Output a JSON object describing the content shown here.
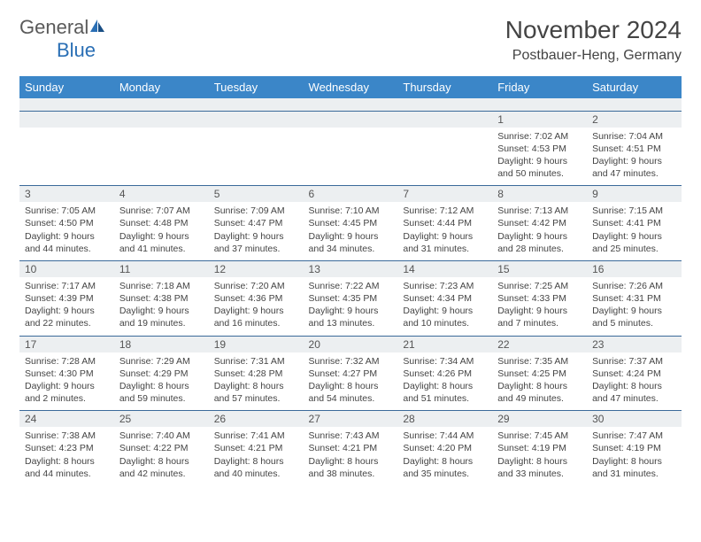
{
  "logo": {
    "text1": "General",
    "text2": "Blue"
  },
  "title": "November 2024",
  "location": "Postbauer-Heng, Germany",
  "colors": {
    "header_bg": "#3b86c8",
    "header_text": "#ffffff",
    "date_bar_bg": "#eceff1",
    "row_border": "#3b6a9a",
    "text": "#444444",
    "logo_gray": "#5a5a5a",
    "logo_blue": "#2a6fb5"
  },
  "weekdays": [
    "Sunday",
    "Monday",
    "Tuesday",
    "Wednesday",
    "Thursday",
    "Friday",
    "Saturday"
  ],
  "weeks": [
    [
      null,
      null,
      null,
      null,
      null,
      {
        "date": "1",
        "sunrise": "Sunrise: 7:02 AM",
        "sunset": "Sunset: 4:53 PM",
        "daylight1": "Daylight: 9 hours",
        "daylight2": "and 50 minutes."
      },
      {
        "date": "2",
        "sunrise": "Sunrise: 7:04 AM",
        "sunset": "Sunset: 4:51 PM",
        "daylight1": "Daylight: 9 hours",
        "daylight2": "and 47 minutes."
      }
    ],
    [
      {
        "date": "3",
        "sunrise": "Sunrise: 7:05 AM",
        "sunset": "Sunset: 4:50 PM",
        "daylight1": "Daylight: 9 hours",
        "daylight2": "and 44 minutes."
      },
      {
        "date": "4",
        "sunrise": "Sunrise: 7:07 AM",
        "sunset": "Sunset: 4:48 PM",
        "daylight1": "Daylight: 9 hours",
        "daylight2": "and 41 minutes."
      },
      {
        "date": "5",
        "sunrise": "Sunrise: 7:09 AM",
        "sunset": "Sunset: 4:47 PM",
        "daylight1": "Daylight: 9 hours",
        "daylight2": "and 37 minutes."
      },
      {
        "date": "6",
        "sunrise": "Sunrise: 7:10 AM",
        "sunset": "Sunset: 4:45 PM",
        "daylight1": "Daylight: 9 hours",
        "daylight2": "and 34 minutes."
      },
      {
        "date": "7",
        "sunrise": "Sunrise: 7:12 AM",
        "sunset": "Sunset: 4:44 PM",
        "daylight1": "Daylight: 9 hours",
        "daylight2": "and 31 minutes."
      },
      {
        "date": "8",
        "sunrise": "Sunrise: 7:13 AM",
        "sunset": "Sunset: 4:42 PM",
        "daylight1": "Daylight: 9 hours",
        "daylight2": "and 28 minutes."
      },
      {
        "date": "9",
        "sunrise": "Sunrise: 7:15 AM",
        "sunset": "Sunset: 4:41 PM",
        "daylight1": "Daylight: 9 hours",
        "daylight2": "and 25 minutes."
      }
    ],
    [
      {
        "date": "10",
        "sunrise": "Sunrise: 7:17 AM",
        "sunset": "Sunset: 4:39 PM",
        "daylight1": "Daylight: 9 hours",
        "daylight2": "and 22 minutes."
      },
      {
        "date": "11",
        "sunrise": "Sunrise: 7:18 AM",
        "sunset": "Sunset: 4:38 PM",
        "daylight1": "Daylight: 9 hours",
        "daylight2": "and 19 minutes."
      },
      {
        "date": "12",
        "sunrise": "Sunrise: 7:20 AM",
        "sunset": "Sunset: 4:36 PM",
        "daylight1": "Daylight: 9 hours",
        "daylight2": "and 16 minutes."
      },
      {
        "date": "13",
        "sunrise": "Sunrise: 7:22 AM",
        "sunset": "Sunset: 4:35 PM",
        "daylight1": "Daylight: 9 hours",
        "daylight2": "and 13 minutes."
      },
      {
        "date": "14",
        "sunrise": "Sunrise: 7:23 AM",
        "sunset": "Sunset: 4:34 PM",
        "daylight1": "Daylight: 9 hours",
        "daylight2": "and 10 minutes."
      },
      {
        "date": "15",
        "sunrise": "Sunrise: 7:25 AM",
        "sunset": "Sunset: 4:33 PM",
        "daylight1": "Daylight: 9 hours",
        "daylight2": "and 7 minutes."
      },
      {
        "date": "16",
        "sunrise": "Sunrise: 7:26 AM",
        "sunset": "Sunset: 4:31 PM",
        "daylight1": "Daylight: 9 hours",
        "daylight2": "and 5 minutes."
      }
    ],
    [
      {
        "date": "17",
        "sunrise": "Sunrise: 7:28 AM",
        "sunset": "Sunset: 4:30 PM",
        "daylight1": "Daylight: 9 hours",
        "daylight2": "and 2 minutes."
      },
      {
        "date": "18",
        "sunrise": "Sunrise: 7:29 AM",
        "sunset": "Sunset: 4:29 PM",
        "daylight1": "Daylight: 8 hours",
        "daylight2": "and 59 minutes."
      },
      {
        "date": "19",
        "sunrise": "Sunrise: 7:31 AM",
        "sunset": "Sunset: 4:28 PM",
        "daylight1": "Daylight: 8 hours",
        "daylight2": "and 57 minutes."
      },
      {
        "date": "20",
        "sunrise": "Sunrise: 7:32 AM",
        "sunset": "Sunset: 4:27 PM",
        "daylight1": "Daylight: 8 hours",
        "daylight2": "and 54 minutes."
      },
      {
        "date": "21",
        "sunrise": "Sunrise: 7:34 AM",
        "sunset": "Sunset: 4:26 PM",
        "daylight1": "Daylight: 8 hours",
        "daylight2": "and 51 minutes."
      },
      {
        "date": "22",
        "sunrise": "Sunrise: 7:35 AM",
        "sunset": "Sunset: 4:25 PM",
        "daylight1": "Daylight: 8 hours",
        "daylight2": "and 49 minutes."
      },
      {
        "date": "23",
        "sunrise": "Sunrise: 7:37 AM",
        "sunset": "Sunset: 4:24 PM",
        "daylight1": "Daylight: 8 hours",
        "daylight2": "and 47 minutes."
      }
    ],
    [
      {
        "date": "24",
        "sunrise": "Sunrise: 7:38 AM",
        "sunset": "Sunset: 4:23 PM",
        "daylight1": "Daylight: 8 hours",
        "daylight2": "and 44 minutes."
      },
      {
        "date": "25",
        "sunrise": "Sunrise: 7:40 AM",
        "sunset": "Sunset: 4:22 PM",
        "daylight1": "Daylight: 8 hours",
        "daylight2": "and 42 minutes."
      },
      {
        "date": "26",
        "sunrise": "Sunrise: 7:41 AM",
        "sunset": "Sunset: 4:21 PM",
        "daylight1": "Daylight: 8 hours",
        "daylight2": "and 40 minutes."
      },
      {
        "date": "27",
        "sunrise": "Sunrise: 7:43 AM",
        "sunset": "Sunset: 4:21 PM",
        "daylight1": "Daylight: 8 hours",
        "daylight2": "and 38 minutes."
      },
      {
        "date": "28",
        "sunrise": "Sunrise: 7:44 AM",
        "sunset": "Sunset: 4:20 PM",
        "daylight1": "Daylight: 8 hours",
        "daylight2": "and 35 minutes."
      },
      {
        "date": "29",
        "sunrise": "Sunrise: 7:45 AM",
        "sunset": "Sunset: 4:19 PM",
        "daylight1": "Daylight: 8 hours",
        "daylight2": "and 33 minutes."
      },
      {
        "date": "30",
        "sunrise": "Sunrise: 7:47 AM",
        "sunset": "Sunset: 4:19 PM",
        "daylight1": "Daylight: 8 hours",
        "daylight2": "and 31 minutes."
      }
    ]
  ]
}
